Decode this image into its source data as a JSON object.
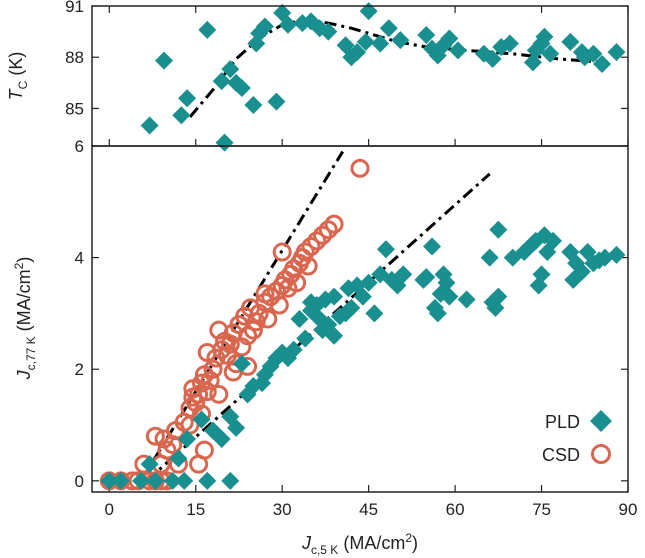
{
  "colors": {
    "pld": "#1a8f8f",
    "csd": "#d9674f",
    "fit": "#000000",
    "axis": "#222222"
  },
  "chart_data": [
    {
      "type": "scatter",
      "panel": "top",
      "ylabel_main": "T",
      "ylabel_sub": "C",
      "ylabel_unit": " (K)",
      "xlim": [
        -3,
        90
      ],
      "ylim": [
        82.8,
        91
      ],
      "yticks": [
        85,
        88,
        91
      ],
      "series": [
        {
          "name": "PLD",
          "marker": "diamond",
          "points": [
            [
              7,
              84
            ],
            [
              9.5,
              87.8
            ],
            [
              12.5,
              84.6
            ],
            [
              13.5,
              85.6
            ],
            [
              17,
              89.6
            ],
            [
              19.5,
              86.6
            ],
            [
              20,
              83
            ],
            [
              21,
              87.3
            ],
            [
              22,
              86.5
            ],
            [
              23,
              86.2
            ],
            [
              25,
              85.2
            ],
            [
              25.5,
              88.8
            ],
            [
              26,
              89.4
            ],
            [
              27,
              89.8
            ],
            [
              29,
              85.4
            ],
            [
              30,
              90.6
            ],
            [
              31,
              89.9
            ],
            [
              33.5,
              90
            ],
            [
              35,
              90.1
            ],
            [
              36.5,
              89.7
            ],
            [
              38,
              89.5
            ],
            [
              41,
              88.7
            ],
            [
              42,
              88
            ],
            [
              43,
              88.3
            ],
            [
              44.5,
              88.9
            ],
            [
              45,
              90.7
            ],
            [
              47,
              88.8
            ],
            [
              48.5,
              89.7
            ],
            [
              50.5,
              89
            ],
            [
              55,
              89.3
            ],
            [
              56,
              88.5
            ],
            [
              57,
              88.1
            ],
            [
              58,
              88.7
            ],
            [
              59,
              89.1
            ],
            [
              60.5,
              88.4
            ],
            [
              65,
              88.2
            ],
            [
              66.5,
              87.9
            ],
            [
              68,
              88.6
            ],
            [
              69.5,
              88.8
            ],
            [
              73.5,
              87.7
            ],
            [
              74,
              88.4
            ],
            [
              75,
              88.8
            ],
            [
              75.5,
              89.2
            ],
            [
              76.5,
              88.2
            ],
            [
              80,
              88.9
            ],
            [
              82,
              88.3
            ],
            [
              82.5,
              88
            ],
            [
              84,
              88.2
            ],
            [
              85.5,
              87.6
            ],
            [
              88,
              88.3
            ]
          ]
        }
      ],
      "fit_line": {
        "style": "dash-dot",
        "points": [
          [
            14,
            84.5
          ],
          [
            18,
            86.1
          ],
          [
            22,
            87.9
          ],
          [
            26,
            89.1
          ],
          [
            30,
            89.9
          ],
          [
            34,
            90.2
          ],
          [
            38,
            90
          ],
          [
            42,
            89.7
          ],
          [
            46,
            89.3
          ],
          [
            50,
            88.9
          ],
          [
            55,
            88.6
          ],
          [
            62,
            88.4
          ],
          [
            70,
            88.2
          ],
          [
            78,
            87.9
          ],
          [
            86,
            87.7
          ]
        ]
      }
    },
    {
      "type": "scatter",
      "panel": "bottom",
      "xlabel_main": "J",
      "xlabel_sub": "c,5 K",
      "xlabel_unit": " (MA/cm",
      "xlabel_sup": "2",
      "xlabel_end": ")",
      "ylabel_main": "J",
      "ylabel_sub": "c,77 K",
      "ylabel_unit": " (MA/cm",
      "ylabel_sup": "2",
      "ylabel_end": ")",
      "xlim": [
        -3,
        90
      ],
      "ylim": [
        -0.2,
        6
      ],
      "xticks": [
        0,
        15,
        30,
        45,
        60,
        75,
        90
      ],
      "yticks": [
        0,
        2,
        4,
        6
      ],
      "series": [
        {
          "name": "PLD",
          "marker": "diamond",
          "points": [
            [
              0,
              0
            ],
            [
              2,
              0
            ],
            [
              5.5,
              0
            ],
            [
              8,
              0
            ],
            [
              11,
              0
            ],
            [
              13,
              0
            ],
            [
              17,
              0
            ],
            [
              21,
              0
            ],
            [
              7,
              0.3
            ],
            [
              12,
              0.4
            ],
            [
              13.5,
              0.75
            ],
            [
              18,
              0.9
            ],
            [
              16,
              1.1
            ],
            [
              19.5,
              0.75
            ],
            [
              21,
              1.15
            ],
            [
              22,
              0.95
            ],
            [
              23,
              2.1
            ],
            [
              24,
              1.55
            ],
            [
              25,
              1.7
            ],
            [
              26.5,
              1.75
            ],
            [
              27,
              1.9
            ],
            [
              28,
              2.05
            ],
            [
              29,
              2.2
            ],
            [
              30,
              2.3
            ],
            [
              31,
              2.2
            ],
            [
              32,
              2.35
            ],
            [
              33,
              2.9
            ],
            [
              34,
              2.55
            ],
            [
              35,
              3.05
            ],
            [
              36,
              3.15
            ],
            [
              36.5,
              2.9
            ],
            [
              37,
              2.7
            ],
            [
              38,
              2.8
            ],
            [
              39,
              2.6
            ],
            [
              40,
              2.95
            ],
            [
              41,
              3.0
            ],
            [
              42,
              3.1
            ],
            [
              43,
              3.5
            ],
            [
              44,
              3.3
            ],
            [
              45,
              3.55
            ],
            [
              46,
              3.0
            ],
            [
              47,
              3.7
            ],
            [
              48,
              4.15
            ],
            [
              49,
              3.6
            ],
            [
              50,
              3.5
            ],
            [
              51,
              3.7
            ],
            [
              54.5,
              3.6
            ],
            [
              55,
              3.65
            ],
            [
              56,
              4.2
            ],
            [
              56.5,
              3.1
            ],
            [
              57,
              3.0
            ],
            [
              57.5,
              3.35
            ],
            [
              58,
              3.7
            ],
            [
              58.5,
              3.55
            ],
            [
              59,
              3.3
            ],
            [
              62,
              3.25
            ],
            [
              66,
              4.0
            ],
            [
              66.5,
              3.2
            ],
            [
              67,
              3.1
            ],
            [
              67.5,
              3.3
            ],
            [
              67.5,
              4.5
            ],
            [
              70,
              4.0
            ],
            [
              72,
              4.1
            ],
            [
              73.5,
              4.25
            ],
            [
              74,
              4.3
            ],
            [
              74.5,
              3.5
            ],
            [
              75,
              3.7
            ],
            [
              75.5,
              4.4
            ],
            [
              76,
              4.1
            ],
            [
              77,
              4.3
            ],
            [
              80,
              4.1
            ],
            [
              80.5,
              3.6
            ],
            [
              81,
              3.9
            ],
            [
              82,
              3.75
            ],
            [
              83,
              4.1
            ],
            [
              84,
              3.9
            ],
            [
              85,
              3.95
            ],
            [
              86,
              4.0
            ],
            [
              88,
              4.05
            ],
            [
              41.5,
              3.45
            ],
            [
              39,
              3.3
            ],
            [
              37.5,
              3.25
            ],
            [
              35,
              3.2
            ]
          ]
        },
        {
          "name": "CSD",
          "marker": "circle",
          "points": [
            [
              0,
              0
            ],
            [
              2,
              0
            ],
            [
              4,
              0
            ],
            [
              5,
              0
            ],
            [
              7,
              0
            ],
            [
              8,
              0
            ],
            [
              9,
              0
            ],
            [
              10,
              0
            ],
            [
              6,
              0.3
            ],
            [
              9,
              0.3
            ],
            [
              10,
              0.55
            ],
            [
              11,
              0.65
            ],
            [
              8,
              0.8
            ],
            [
              11.5,
              0.9
            ],
            [
              9.5,
              0.75
            ],
            [
              13,
              1.05
            ],
            [
              14,
              1.3
            ],
            [
              14.5,
              1.5
            ],
            [
              14.5,
              1.65
            ],
            [
              15,
              1.4
            ],
            [
              15.5,
              1.55
            ],
            [
              16,
              1.75
            ],
            [
              16.5,
              1.9
            ],
            [
              17,
              1.6
            ],
            [
              17.5,
              1.8
            ],
            [
              18,
              2.0
            ],
            [
              18.5,
              2.2
            ],
            [
              19,
              1.55
            ],
            [
              19.5,
              2.35
            ],
            [
              20,
              2.5
            ],
            [
              20.5,
              2.25
            ],
            [
              21,
              2.45
            ],
            [
              21.5,
              2.65
            ],
            [
              22,
              2.1
            ],
            [
              22.5,
              2.8
            ],
            [
              23,
              2.4
            ],
            [
              23.5,
              2.95
            ],
            [
              24,
              2.6
            ],
            [
              24.5,
              3.1
            ],
            [
              25,
              2.7
            ],
            [
              25.5,
              2.85
            ],
            [
              26,
              3.0
            ],
            [
              27,
              3.2
            ],
            [
              27.5,
              2.9
            ],
            [
              28,
              3.3
            ],
            [
              29,
              3.4
            ],
            [
              29.5,
              3.15
            ],
            [
              30,
              3.5
            ],
            [
              30.5,
              3.6
            ],
            [
              31,
              3.45
            ],
            [
              31.5,
              3.7
            ],
            [
              32,
              3.8
            ],
            [
              32.5,
              3.55
            ],
            [
              33,
              3.9
            ],
            [
              33.5,
              4.0
            ],
            [
              34,
              4.1
            ],
            [
              34.5,
              3.85
            ],
            [
              35,
              4.2
            ],
            [
              36,
              4.3
            ],
            [
              37,
              4.4
            ],
            [
              38,
              4.5
            ],
            [
              39,
              4.6
            ],
            [
              30,
              4.1
            ],
            [
              27,
              3.35
            ],
            [
              19,
              2.7
            ],
            [
              17,
              2.3
            ],
            [
              16,
              1.2
            ],
            [
              14,
              1.0
            ],
            [
              43.5,
              5.6
            ],
            [
              12,
              0.3
            ],
            [
              16.5,
              0.55
            ],
            [
              15.5,
              0.3
            ],
            [
              21.5,
              1.95
            ],
            [
              24,
              2.05
            ]
          ]
        }
      ],
      "fit_lines": [
        {
          "style": "dash-dot",
          "points": [
            [
              5.5,
              0
            ],
            [
              40.5,
              5.9
            ]
          ]
        },
        {
          "style": "dash-dot",
          "points": [
            [
              6.5,
              0
            ],
            [
              66,
              5.5
            ]
          ]
        }
      ],
      "legend": {
        "position": "bottom-right",
        "entries": [
          "PLD",
          "CSD"
        ]
      }
    }
  ]
}
